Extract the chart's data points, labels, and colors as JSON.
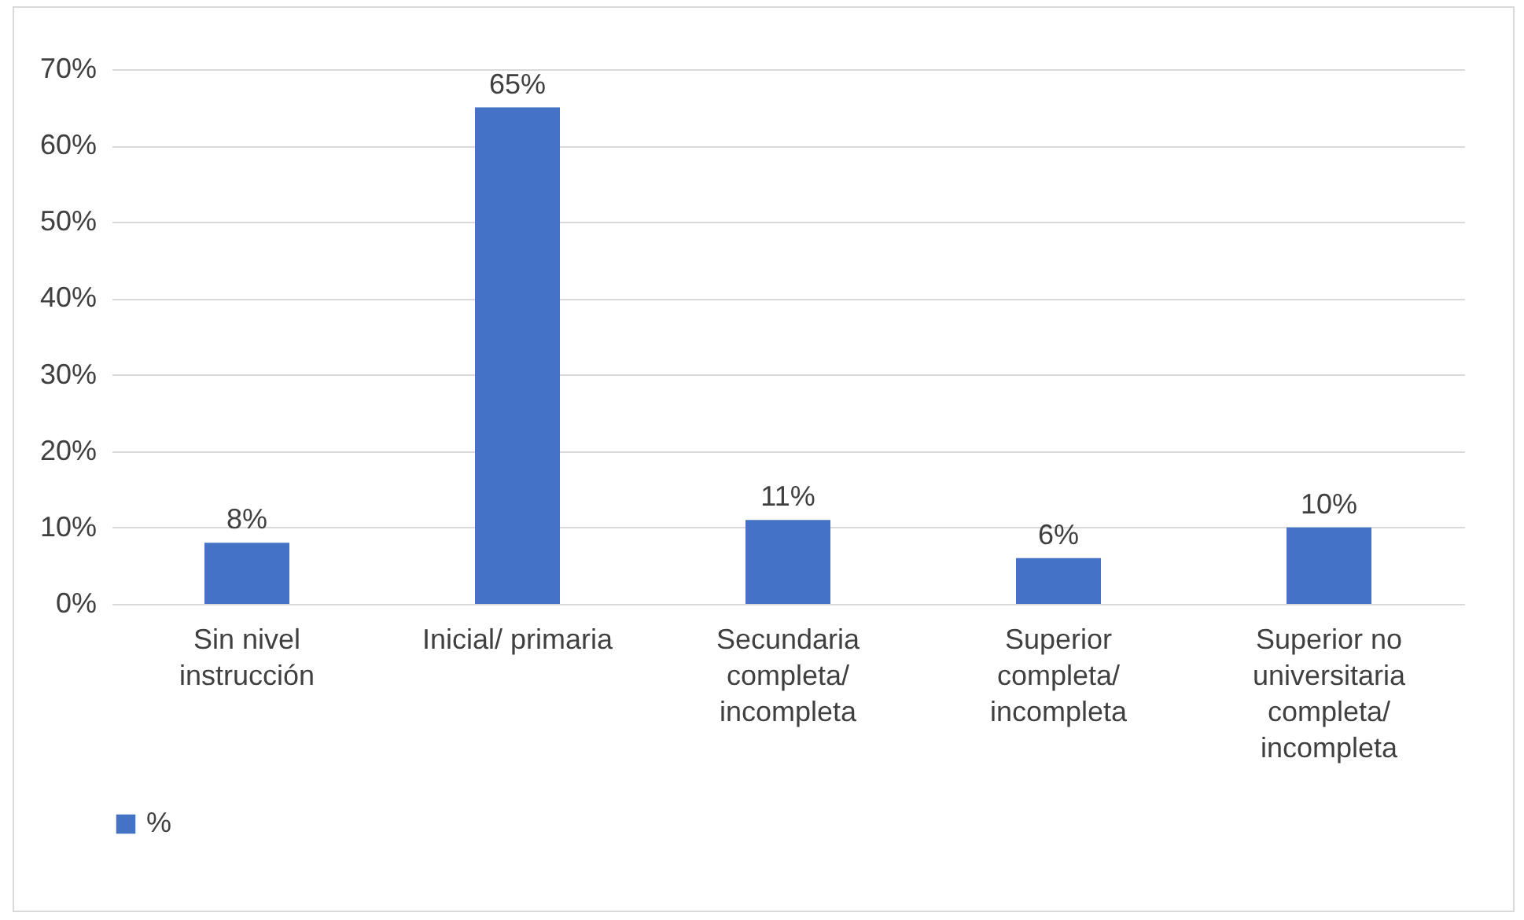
{
  "chart_data": {
    "type": "bar",
    "categories": [
      "Sin nivel instrucción",
      "Inicial/ primaria",
      "Secundaria completa/ incompleta",
      "Superior completa/ incompleta",
      "Superior no universitaria completa/ incompleta"
    ],
    "series": [
      {
        "name": "%",
        "color": "#4472c4",
        "values": [
          8,
          65,
          11,
          6,
          10
        ],
        "value_labels": [
          "8%",
          "65%",
          "11%",
          "6%",
          "10%"
        ]
      }
    ],
    "ylim": [
      0,
      70
    ],
    "yticks": [
      {
        "value": 0,
        "label": "0%"
      },
      {
        "value": 10,
        "label": "10%"
      },
      {
        "value": 20,
        "label": "20%"
      },
      {
        "value": 30,
        "label": "30%"
      },
      {
        "value": 40,
        "label": "40%"
      },
      {
        "value": 50,
        "label": "50%"
      },
      {
        "value": 60,
        "label": "60%"
      },
      {
        "value": 70,
        "label": "70%"
      }
    ],
    "grid": "y",
    "legend": "bottom"
  }
}
